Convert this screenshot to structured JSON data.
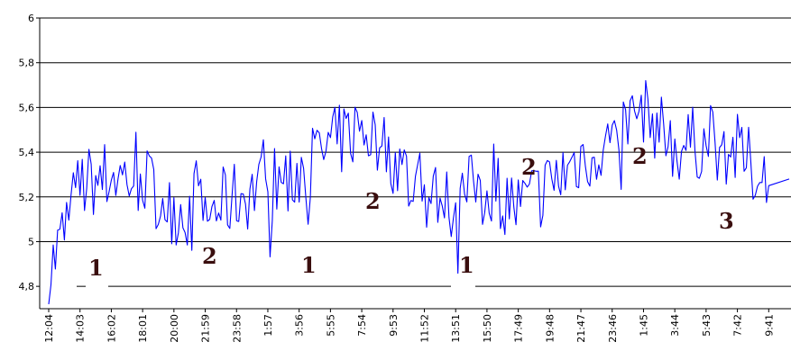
{
  "chart_data": {
    "type": "line",
    "title": "",
    "xlabel": "",
    "ylabel": "",
    "ylim": [
      4.7,
      6.0
    ],
    "yticks": [
      "4,8",
      "5",
      "5,2",
      "5,4",
      "5,6",
      "5,8",
      "6"
    ],
    "ytick_values": [
      4.8,
      5.0,
      5.2,
      5.4,
      5.6,
      5.8,
      6.0
    ],
    "grid": "horizontal",
    "legend": "none",
    "x": [
      "12:04",
      "14:03",
      "16:02",
      "18:01",
      "20:00",
      "21:59",
      "23:58",
      "1:57",
      "3:56",
      "5:55",
      "7:54",
      "9:53",
      "11:52",
      "13:51",
      "15:50",
      "17:49",
      "19:48",
      "21:47",
      "23:46",
      "1:45",
      "3:44",
      "5:43",
      "7:42",
      "9:41"
    ],
    "series": [
      {
        "color": "#0000ff",
        "values": [
          4.85,
          5.25,
          5.3,
          5.28,
          5.15,
          5.12,
          5.2,
          5.25,
          5.32,
          5.42,
          5.52,
          5.38,
          5.2,
          5.18,
          5.28,
          5.15,
          5.25,
          5.38,
          5.45,
          5.6,
          5.42,
          5.45,
          5.4,
          5.25
        ]
      }
    ],
    "annotations": [
      "1",
      "2",
      "1",
      "2",
      "1",
      "2",
      "2",
      "3"
    ],
    "color": "#0000ff"
  }
}
